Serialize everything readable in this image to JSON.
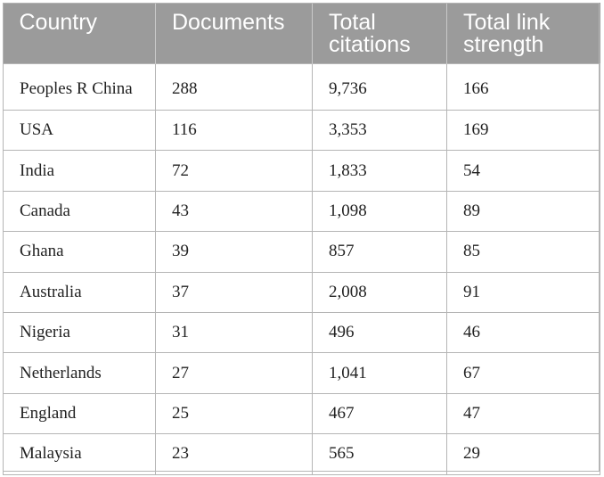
{
  "table": {
    "headers": [
      "Country",
      "Documents",
      "Total\ncitations",
      "Total link\nstrength"
    ],
    "rows": [
      [
        "Peoples R China",
        "288",
        "9,736",
        "166"
      ],
      [
        "USA",
        "116",
        "3,353",
        "169"
      ],
      [
        "India",
        "72",
        "1,833",
        "54"
      ],
      [
        "Canada",
        "43",
        "1,098",
        "89"
      ],
      [
        "Ghana",
        "39",
        "857",
        "85"
      ],
      [
        "Australia",
        "37",
        "2,008",
        "91"
      ],
      [
        "Nigeria",
        "31",
        "496",
        "46"
      ],
      [
        "Netherlands",
        "27",
        "1,041",
        "67"
      ],
      [
        "England",
        "25",
        "467",
        "47"
      ],
      [
        "Malaysia",
        "23",
        "565",
        "29"
      ]
    ]
  },
  "colors": {
    "header_bg": "#9b9b9b",
    "header_text": "#ffffff",
    "grid": "#b5b5b5",
    "cell_text": "#222222"
  }
}
